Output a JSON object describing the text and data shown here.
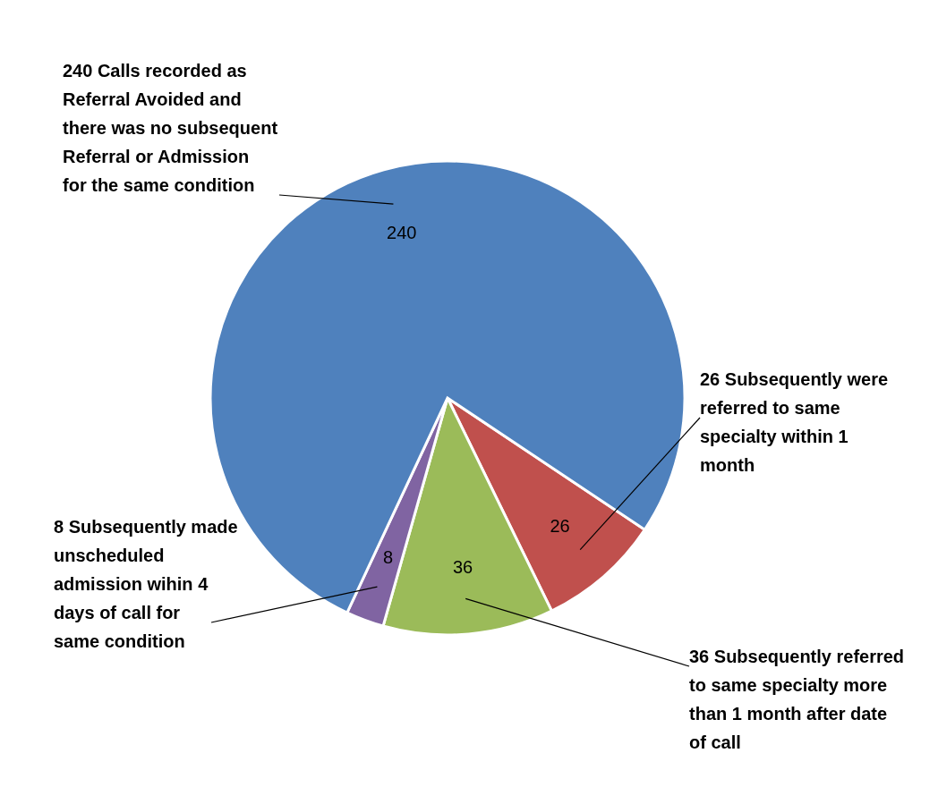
{
  "chart_data": {
    "type": "pie",
    "categories": [
      "26 Subsequently were referred to same specialty within 1 month",
      "36 Subsequently referred to same specialty more than 1 month after date of call",
      "8 Subsequently made unscheduled admission wihin 4 days of call for same condition",
      "240 Calls recorded as Referral Avoided and there was no subsequent Referral or Admission for the same condition"
    ],
    "values": [
      26,
      36,
      8,
      240
    ],
    "colors": [
      "#c0504d",
      "#9bbb59",
      "#8064a2",
      "#4f81bd"
    ],
    "data_labels": true
  }
}
